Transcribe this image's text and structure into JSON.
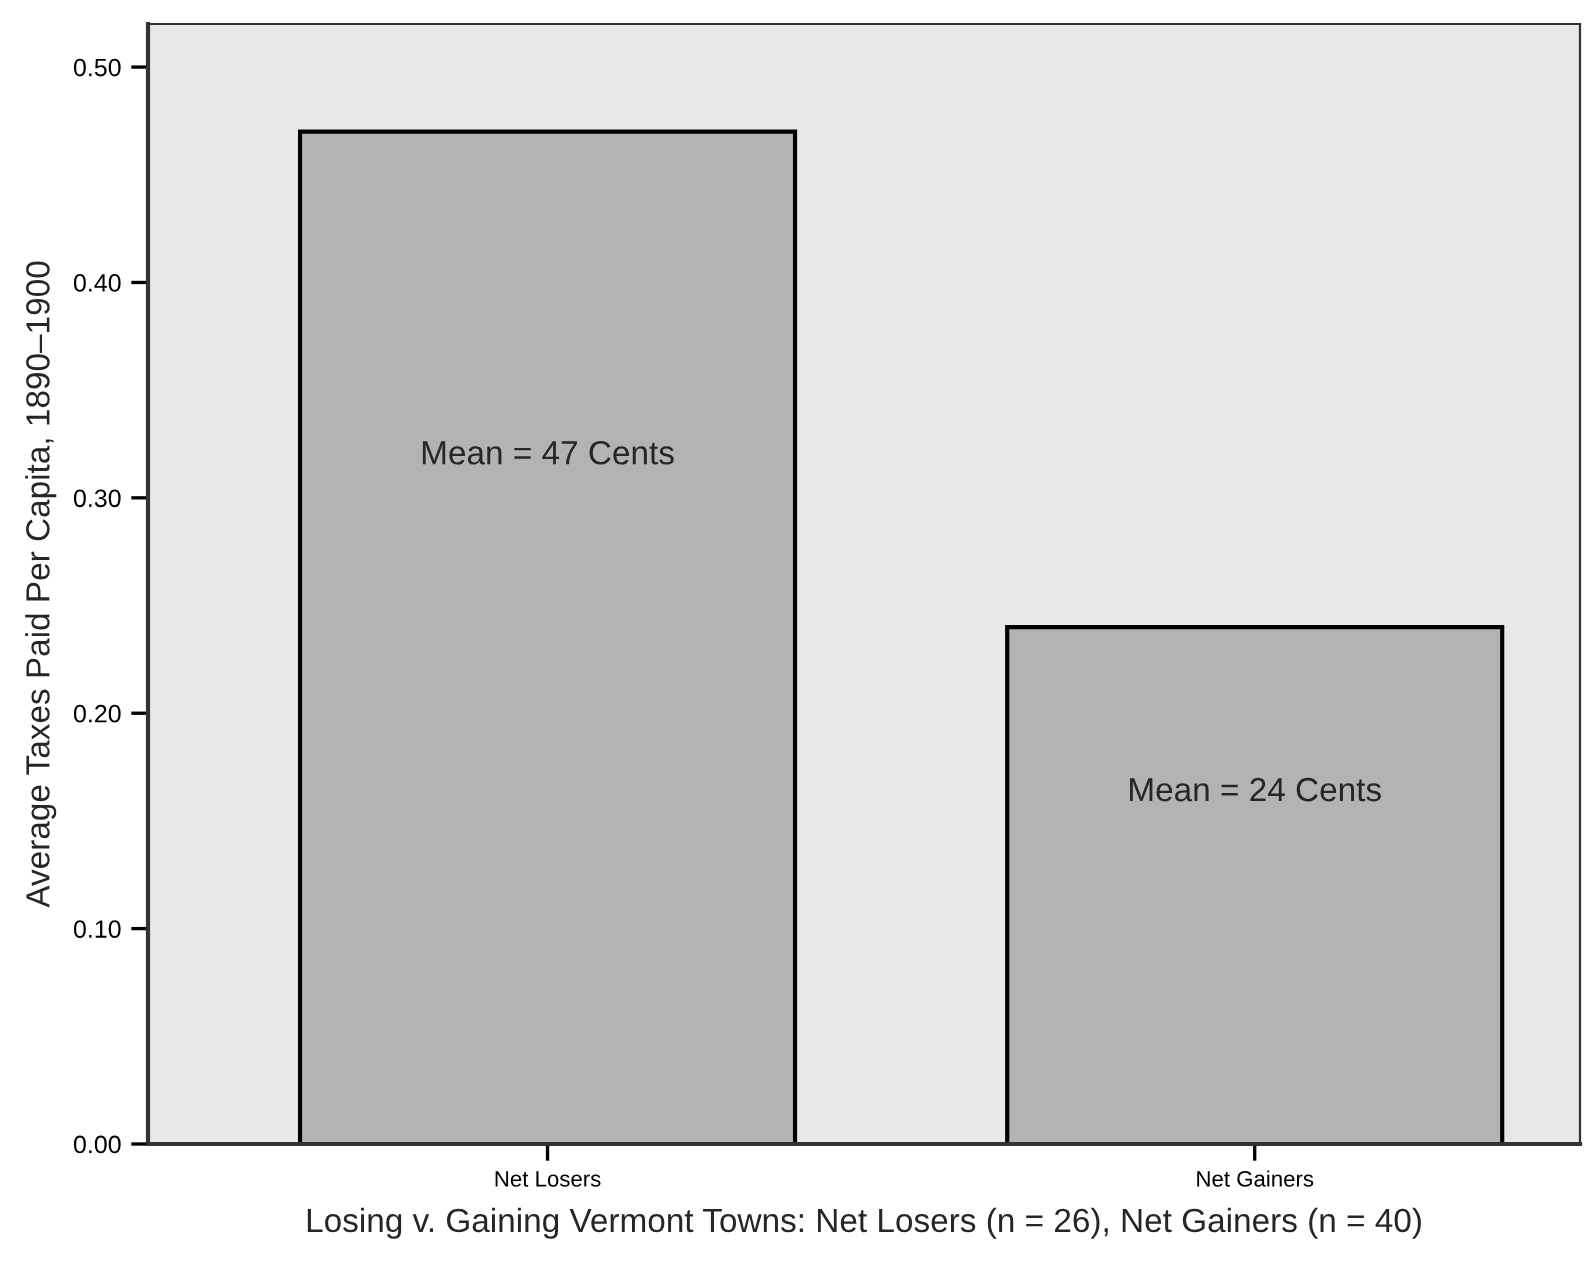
{
  "chart_data": {
    "type": "bar",
    "xlabel": "Losing v. Gaining Vermont Towns: Net Losers (n = 26), Net Gainers (n = 40)",
    "ylabel": "Average Taxes Paid Per Capita, 1890–1900",
    "categories": [
      "Net Losers",
      "Net Gainers"
    ],
    "values": [
      0.47,
      0.24
    ],
    "color": "#b3b3b3",
    "ylim": [
      0,
      0.52
    ],
    "yticks": [
      {
        "value": 0,
        "label": "0.00"
      },
      {
        "value": 0.1,
        "label": "0.10"
      },
      {
        "value": 0.2,
        "label": "0.20"
      },
      {
        "value": 0.3,
        "label": "0.30"
      },
      {
        "value": 0.4,
        "label": "0.40"
      },
      {
        "value": 0.5,
        "label": "0.50"
      }
    ],
    "annotations": [
      "Mean = 47 Cents",
      "Mean = 24 Cents"
    ],
    "grid": false
  }
}
